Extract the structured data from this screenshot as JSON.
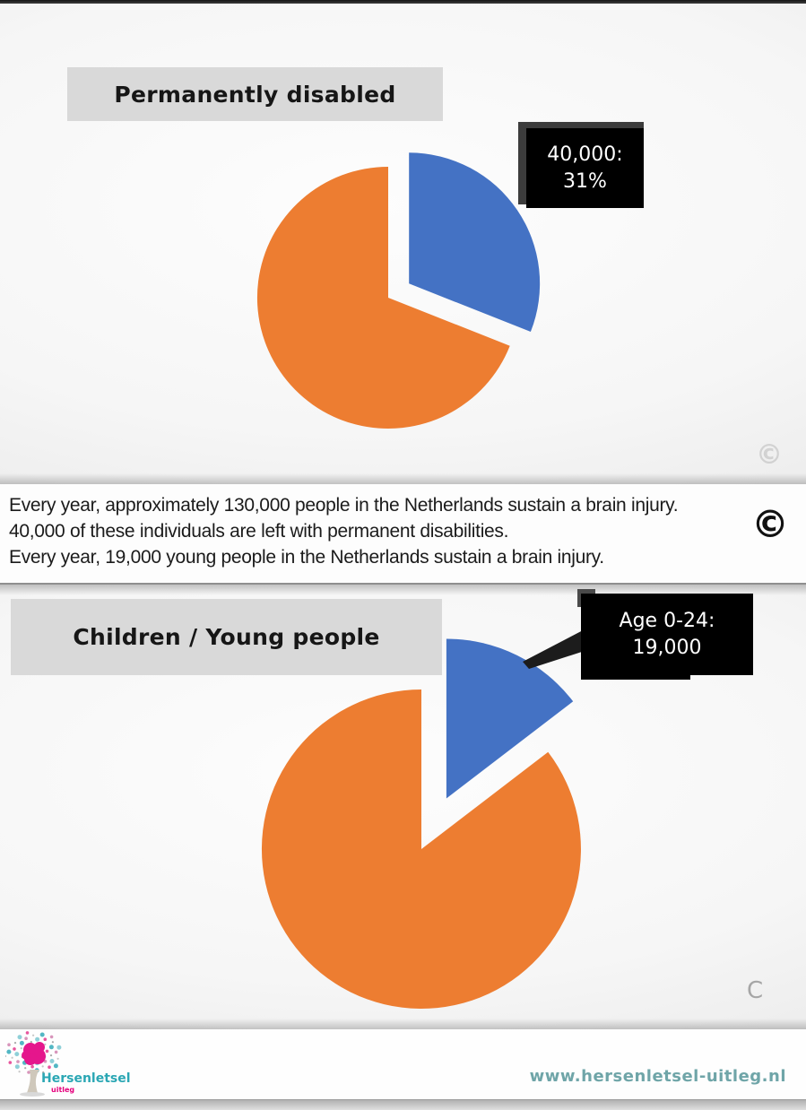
{
  "colors": {
    "pie_blue": "#4472C4",
    "pie_orange": "#ED7D31",
    "title_box_bg": "#d9d9d9",
    "callout_bg": "#000000",
    "callout_text": "#ffffff",
    "logo_text_color": "#2ba7b4",
    "logo_sub_color": "#e5007d",
    "url_color": "#6fa5a8"
  },
  "sections": {
    "top_chart": {
      "title": "Permanently disabled",
      "callout": {
        "line1": "40,000:",
        "line2": "31%"
      },
      "watermark": "©"
    },
    "middle_text": {
      "lines": [
        "Every year, approximately 130,000 people in the Netherlands sustain a brain injury.",
        "40,000 of these individuals are left with permanent disabilities.",
        "Every year, 19,000 young people in the Netherlands sustain a brain injury."
      ],
      "copyright_symbol": "©"
    },
    "bottom_chart": {
      "title": "Children / Young people",
      "callout": {
        "line1": "Age 0-24:",
        "line2": "19,000"
      },
      "watermark": "C"
    },
    "footer": {
      "logo_text": "Hersenletsel",
      "logo_subtext": "uitleg",
      "website": "www.hersenletsel-uitleg.nl"
    }
  },
  "chart_data": [
    {
      "type": "pie",
      "title": "Permanently disabled",
      "slices": [
        {
          "value": 31,
          "label": "40,000: 31%",
          "color": "#4472C4",
          "exploded": true
        },
        {
          "value": 69,
          "label": "",
          "color": "#ED7D31",
          "exploded": false
        }
      ],
      "start_angle_deg": 0,
      "direction": "clockwise",
      "legend": "none"
    },
    {
      "type": "pie",
      "title": "Children / Young people",
      "slices": [
        {
          "value": 14.6,
          "label": "Age 0-24: 19,000",
          "color": "#4472C4",
          "exploded": true
        },
        {
          "value": 85.4,
          "label": "",
          "color": "#ED7D31",
          "exploded": false
        }
      ],
      "start_angle_deg": 0,
      "direction": "clockwise",
      "legend": "none"
    }
  ]
}
